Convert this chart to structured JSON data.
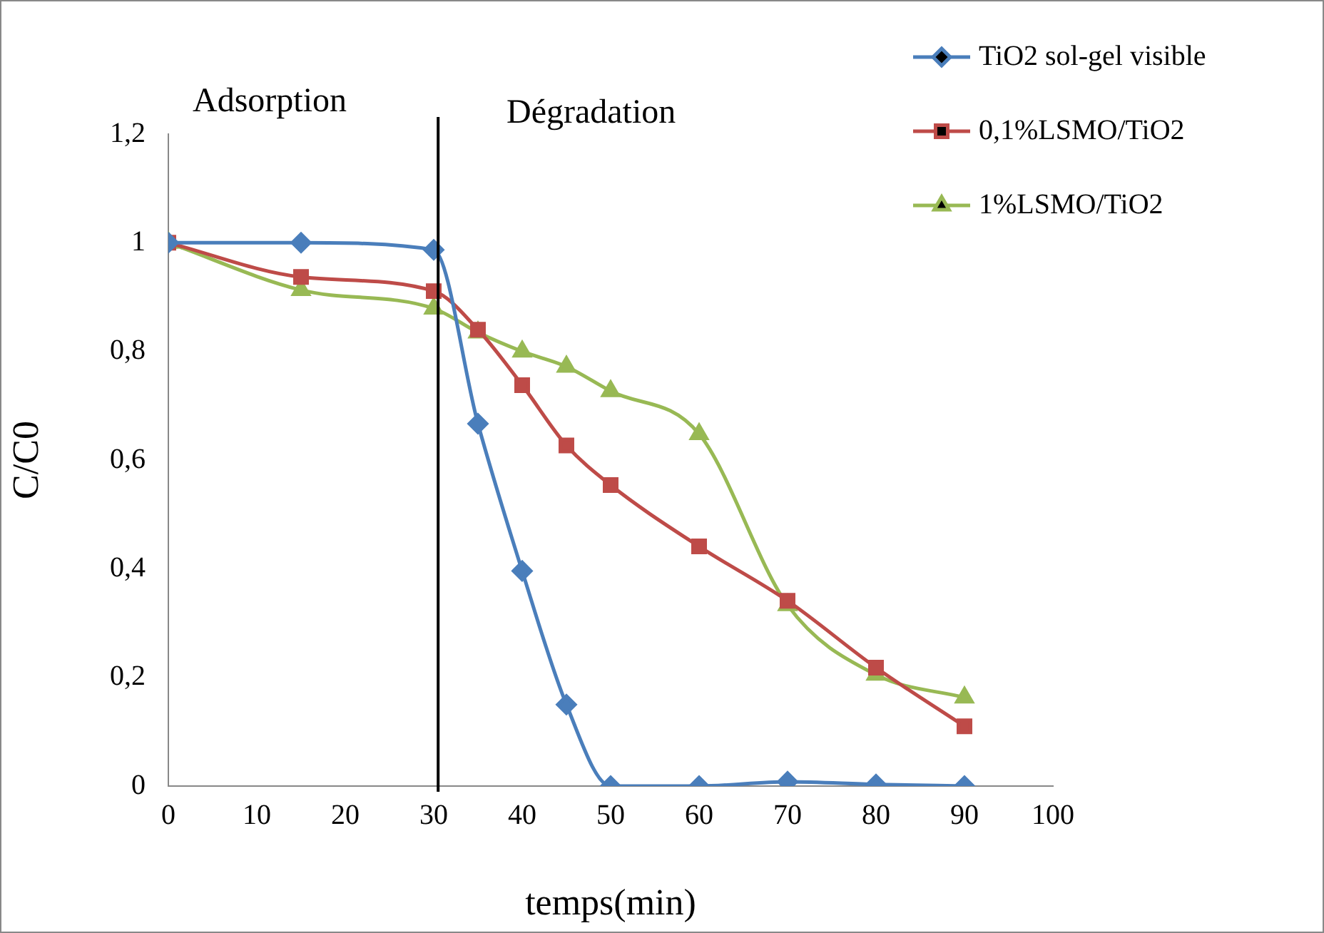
{
  "chart_data": {
    "type": "line",
    "xlabel": "temps(min)",
    "ylabel": "C/C0",
    "annotations": [
      "Adsorption",
      "Dégradation"
    ],
    "x": [
      0,
      15,
      30,
      35,
      40,
      45,
      50,
      60,
      70,
      80,
      90
    ],
    "series": [
      {
        "name": "TiO2 sol-gel visible",
        "color": "#4a7ebb",
        "marker": "diamond",
        "values": [
          1,
          1,
          0.987,
          0.667,
          0.396,
          0.15,
          0,
          0,
          0.008,
          0.003,
          0
        ]
      },
      {
        "name": "0,1%LSMO/TiO2",
        "color": "#be4b48",
        "marker": "square",
        "values": [
          1,
          0.937,
          0.911,
          0.84,
          0.738,
          0.627,
          0.554,
          0.441,
          0.341,
          0.218,
          0.11
        ]
      },
      {
        "name": "1%LSMO/TiO2",
        "color": "#98b954",
        "marker": "triangle",
        "values": [
          1,
          0.913,
          0.879,
          0.835,
          0.8,
          0.772,
          0.727,
          0.648,
          0.333,
          0.205,
          0.163
        ]
      }
    ],
    "xlim": [
      0,
      100
    ],
    "xticks": [
      0,
      10,
      20,
      30,
      40,
      50,
      60,
      70,
      80,
      90,
      100
    ],
    "ylim": [
      0,
      1.2
    ],
    "yticks": [
      0,
      {
        "value": 0.2,
        "label": "0,2"
      },
      {
        "value": 0.4,
        "label": "0,4"
      },
      {
        "value": 0.6,
        "label": "0,6"
      },
      {
        "value": 0.8,
        "label": "0,8"
      },
      1,
      {
        "value": 1.2,
        "label": "1,2"
      }
    ],
    "ref_lines": [
      {
        "axis": "x",
        "value": 30.5,
        "color": "#000000"
      }
    ],
    "grid": false,
    "legend": "top right"
  }
}
